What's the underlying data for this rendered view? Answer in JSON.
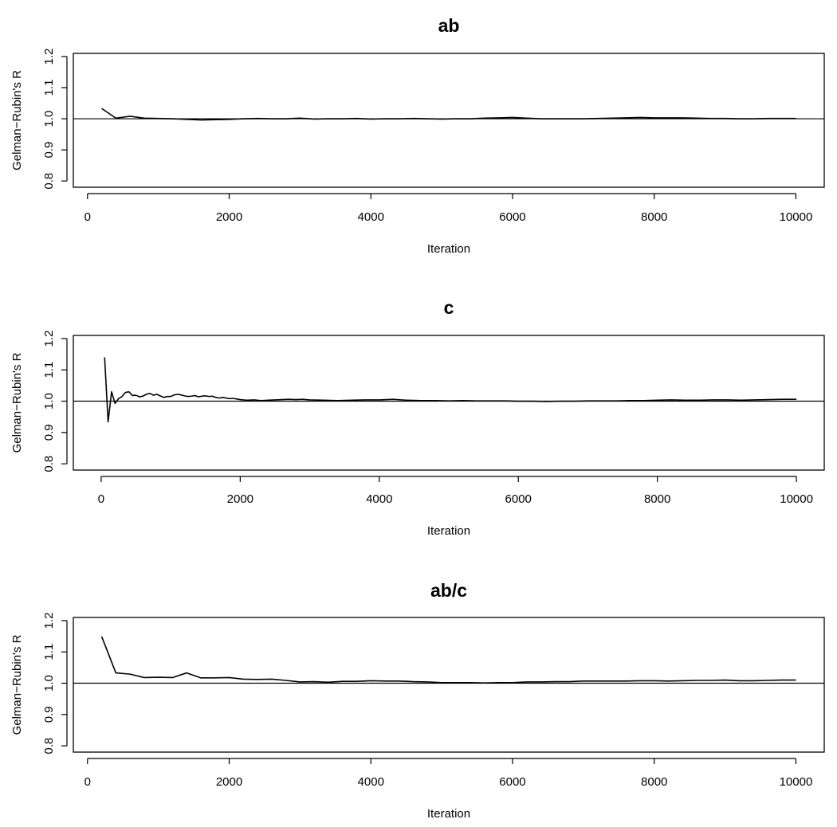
{
  "chart_data": [
    {
      "type": "line",
      "title": "ab",
      "xlabel": "Iteration",
      "ylabel": "Gelman−Rubin's R",
      "xlim": [
        -200,
        10400
      ],
      "ylim": [
        0.78,
        1.21
      ],
      "xticks": [
        0,
        2000,
        4000,
        6000,
        8000,
        10000
      ],
      "yticks": [
        0.8,
        0.9,
        1.0,
        1.1,
        1.2
      ],
      "xtick_labels": [
        "0",
        "2000",
        "4000",
        "6000",
        "8000",
        "10000"
      ],
      "ytick_labels": [
        "0.8",
        "0.9",
        "1.0",
        "1.1",
        "1.2"
      ],
      "reference_line": 1.0,
      "series": [
        {
          "x": [
            200,
            400,
            600,
            800,
            1000,
            1200,
            1400,
            1600,
            1800,
            2000,
            2200,
            2400,
            2600,
            2800,
            3000,
            3200,
            3400,
            3600,
            3800,
            4000,
            4200,
            4400,
            4600,
            4800,
            5000,
            5200,
            5400,
            5600,
            5800,
            6000,
            6200,
            6400,
            6600,
            6800,
            7000,
            7200,
            7400,
            7600,
            7800,
            8000,
            8200,
            8400,
            8600,
            8800,
            9000,
            9200,
            9400,
            9600,
            9800,
            10000
          ],
          "y": [
            1.033,
            1.002,
            1.008,
            1.002,
            1.001,
            1.0,
            0.998,
            0.996,
            0.997,
            0.998,
            1.0,
            1.001,
            1.0,
            1.0,
            1.002,
            0.999,
            1.0,
            1.0,
            1.001,
            0.999,
            1.0,
            1.0,
            1.001,
            1.0,
            0.999,
            1.0,
            1.0,
            1.002,
            1.003,
            1.004,
            1.002,
            1.0,
            1.0,
            1.0,
            1.0,
            1.001,
            1.002,
            1.003,
            1.004,
            1.003,
            1.003,
            1.003,
            1.002,
            1.001,
            1.001,
            1.0,
            1.0,
            1.001,
            1.001,
            1.001
          ]
        }
      ]
    },
    {
      "type": "line",
      "title": "c",
      "xlabel": "Iteration",
      "ylabel": "Gelman−Rubin's R",
      "xlim": [
        -400,
        10400
      ],
      "ylim": [
        0.78,
        1.21
      ],
      "xticks": [
        0,
        2000,
        4000,
        6000,
        8000,
        10000
      ],
      "yticks": [
        0.8,
        0.9,
        1.0,
        1.1,
        1.2
      ],
      "xtick_labels": [
        "0",
        "2000",
        "4000",
        "6000",
        "8000",
        "10000"
      ],
      "ytick_labels": [
        "0.8",
        "0.9",
        "1.0",
        "1.1",
        "1.2"
      ],
      "reference_line": 1.0,
      "series": [
        {
          "x": [
            50,
            100,
            150,
            200,
            250,
            300,
            350,
            400,
            450,
            500,
            550,
            600,
            650,
            700,
            750,
            800,
            850,
            900,
            950,
            1000,
            1050,
            1100,
            1150,
            1200,
            1250,
            1300,
            1350,
            1400,
            1450,
            1500,
            1550,
            1600,
            1650,
            1700,
            1750,
            1800,
            1850,
            1900,
            1950,
            2000,
            2100,
            2200,
            2300,
            2400,
            2500,
            2600,
            2700,
            2800,
            2900,
            3000,
            3200,
            3400,
            3600,
            3800,
            4000,
            4200,
            4400,
            4600,
            4800,
            5000,
            5200,
            5400,
            5600,
            5800,
            6000,
            6200,
            6400,
            6600,
            6800,
            7000,
            7200,
            7400,
            7600,
            7800,
            8000,
            8200,
            8400,
            8600,
            8800,
            9000,
            9200,
            9400,
            9600,
            9800,
            10000
          ],
          "y": [
            1.14,
            0.934,
            1.03,
            0.993,
            1.008,
            1.015,
            1.028,
            1.03,
            1.018,
            1.019,
            1.014,
            1.016,
            1.022,
            1.025,
            1.019,
            1.022,
            1.017,
            1.012,
            1.015,
            1.015,
            1.02,
            1.022,
            1.02,
            1.017,
            1.015,
            1.016,
            1.018,
            1.014,
            1.016,
            1.017,
            1.015,
            1.016,
            1.012,
            1.01,
            1.012,
            1.01,
            1.008,
            1.009,
            1.007,
            1.005,
            1.003,
            1.004,
            1.002,
            1.003,
            1.004,
            1.005,
            1.006,
            1.005,
            1.006,
            1.004,
            1.003,
            1.002,
            1.003,
            1.004,
            1.004,
            1.006,
            1.003,
            1.002,
            1.002,
            1.001,
            1.002,
            1.001,
            1.001,
            1.001,
            1.0,
            1.0,
            0.999,
            1.0,
            1.0,
            1.001,
            1.001,
            1.001,
            1.002,
            1.002,
            1.003,
            1.004,
            1.003,
            1.003,
            1.004,
            1.004,
            1.003,
            1.004,
            1.005,
            1.006,
            1.006
          ]
        }
      ]
    },
    {
      "type": "line",
      "title": "ab/c",
      "xlabel": "Iteration",
      "ylabel": "Gelman−Rubin's R",
      "xlim": [
        -200,
        10400
      ],
      "ylim": [
        0.78,
        1.21
      ],
      "xticks": [
        0,
        2000,
        4000,
        6000,
        8000,
        10000
      ],
      "yticks": [
        0.8,
        0.9,
        1.0,
        1.1,
        1.2
      ],
      "xtick_labels": [
        "0",
        "2000",
        "4000",
        "6000",
        "8000",
        "10000"
      ],
      "ytick_labels": [
        "0.8",
        "0.9",
        "1.0",
        "1.1",
        "1.2"
      ],
      "reference_line": 1.0,
      "series": [
        {
          "x": [
            200,
            400,
            600,
            800,
            1000,
            1200,
            1400,
            1600,
            1800,
            2000,
            2200,
            2400,
            2600,
            2800,
            3000,
            3200,
            3400,
            3600,
            3800,
            4000,
            4200,
            4400,
            4600,
            4800,
            5000,
            5200,
            5400,
            5600,
            5800,
            6000,
            6200,
            6400,
            6600,
            6800,
            7000,
            7200,
            7400,
            7600,
            7800,
            8000,
            8200,
            8400,
            8600,
            8800,
            9000,
            9200,
            9400,
            9600,
            9800,
            10000
          ],
          "y": [
            1.149,
            1.033,
            1.029,
            1.018,
            1.019,
            1.018,
            1.033,
            1.017,
            1.017,
            1.018,
            1.013,
            1.012,
            1.013,
            1.009,
            1.004,
            1.005,
            1.003,
            1.006,
            1.006,
            1.008,
            1.007,
            1.007,
            1.005,
            1.004,
            1.002,
            1.002,
            1.002,
            1.001,
            1.002,
            1.002,
            1.004,
            1.004,
            1.005,
            1.005,
            1.007,
            1.007,
            1.007,
            1.007,
            1.008,
            1.008,
            1.007,
            1.008,
            1.009,
            1.009,
            1.01,
            1.008,
            1.008,
            1.009,
            1.01,
            1.01
          ]
        }
      ]
    }
  ]
}
